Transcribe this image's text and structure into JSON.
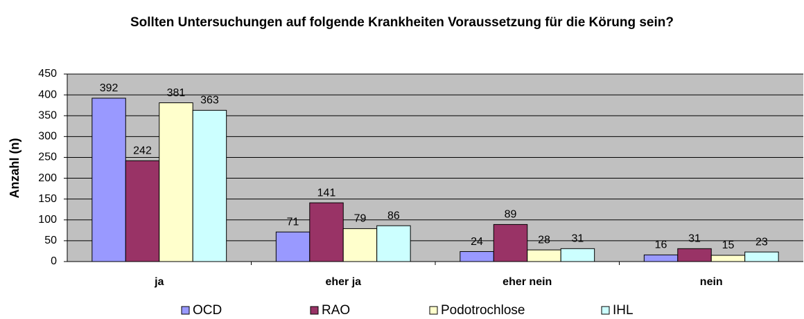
{
  "chart_data": {
    "type": "bar",
    "title": "Sollten Untersuchungen auf folgende Krankheiten Voraussetzung für die Körung sein?",
    "y_label": "Anzahl (n)",
    "categories": [
      "ja",
      "eher ja",
      "eher nein",
      "nein"
    ],
    "series": [
      {
        "name": "OCD",
        "color": "#9999ff",
        "values": [
          392,
          71,
          24,
          16
        ]
      },
      {
        "name": "RAO",
        "color": "#993366",
        "values": [
          242,
          141,
          89,
          31
        ]
      },
      {
        "name": "Podotrochlose",
        "color": "#ffffcc",
        "values": [
          381,
          79,
          28,
          15
        ]
      },
      {
        "name": "IHL",
        "color": "#ccffff",
        "values": [
          363,
          86,
          31,
          23
        ]
      }
    ],
    "ylim": [
      0,
      450
    ],
    "yticks": [
      0,
      50,
      100,
      150,
      200,
      250,
      300,
      350,
      400,
      450
    ],
    "grid": true,
    "legend": "bottom"
  }
}
